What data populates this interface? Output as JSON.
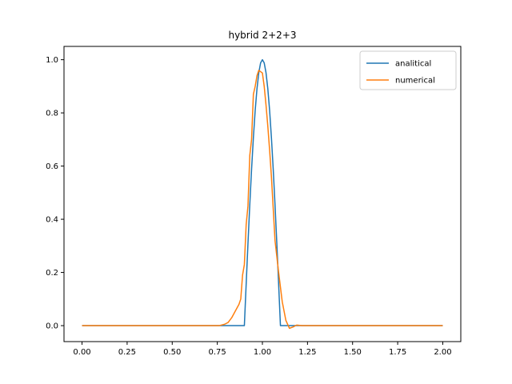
{
  "chart_data": {
    "type": "line",
    "title": "hybrid 2+2+3",
    "xlabel": "",
    "ylabel": "",
    "xlim": [
      -0.1,
      2.1
    ],
    "ylim": [
      -0.06,
      1.05
    ],
    "xticks": [
      0.0,
      0.25,
      0.5,
      0.75,
      1.0,
      1.25,
      1.5,
      1.75,
      2.0
    ],
    "xtick_labels": [
      "0.00",
      "0.25",
      "0.50",
      "0.75",
      "1.00",
      "1.25",
      "1.50",
      "1.75",
      "2.00"
    ],
    "yticks": [
      0.0,
      0.2,
      0.4,
      0.6,
      0.8,
      1.0
    ],
    "ytick_labels": [
      "0.0",
      "0.2",
      "0.4",
      "0.6",
      "0.8",
      "1.0"
    ],
    "grid": false,
    "legend_position": "top-right",
    "series": [
      {
        "name": "analitical",
        "color": "#1f77b4",
        "x": [
          0.0,
          0.9,
          0.9,
          0.91,
          0.92,
          0.93,
          0.94,
          0.95,
          0.96,
          0.97,
          0.98,
          0.99,
          1.0,
          1.01,
          1.02,
          1.03,
          1.04,
          1.05,
          1.06,
          1.07,
          1.08,
          1.09,
          1.1,
          1.1,
          2.0
        ],
        "y": [
          0.0,
          0.0,
          0.0,
          0.156,
          0.309,
          0.454,
          0.588,
          0.707,
          0.809,
          0.891,
          0.951,
          0.988,
          1.0,
          0.988,
          0.951,
          0.891,
          0.809,
          0.707,
          0.588,
          0.454,
          0.309,
          0.156,
          0.0,
          0.0,
          0.0
        ]
      },
      {
        "name": "numerical",
        "color": "#ff7f0e",
        "x": [
          0.0,
          0.76,
          0.79,
          0.81,
          0.83,
          0.85,
          0.87,
          0.88,
          0.89,
          0.9,
          0.91,
          0.92,
          0.93,
          0.94,
          0.95,
          0.96,
          0.97,
          0.98,
          0.99,
          1.0,
          1.01,
          1.02,
          1.03,
          1.04,
          1.05,
          1.06,
          1.07,
          1.09,
          1.11,
          1.13,
          1.15,
          1.17,
          1.19,
          1.22,
          1.3,
          2.0
        ],
        "y": [
          0.0,
          0.0,
          0.005,
          0.012,
          0.03,
          0.055,
          0.08,
          0.1,
          0.19,
          0.23,
          0.38,
          0.45,
          0.64,
          0.7,
          0.87,
          0.9,
          0.94,
          0.96,
          0.955,
          0.95,
          0.9,
          0.83,
          0.75,
          0.66,
          0.56,
          0.44,
          0.32,
          0.2,
          0.09,
          0.02,
          -0.01,
          -0.005,
          0.002,
          0.0,
          0.0,
          0.0
        ]
      }
    ]
  }
}
